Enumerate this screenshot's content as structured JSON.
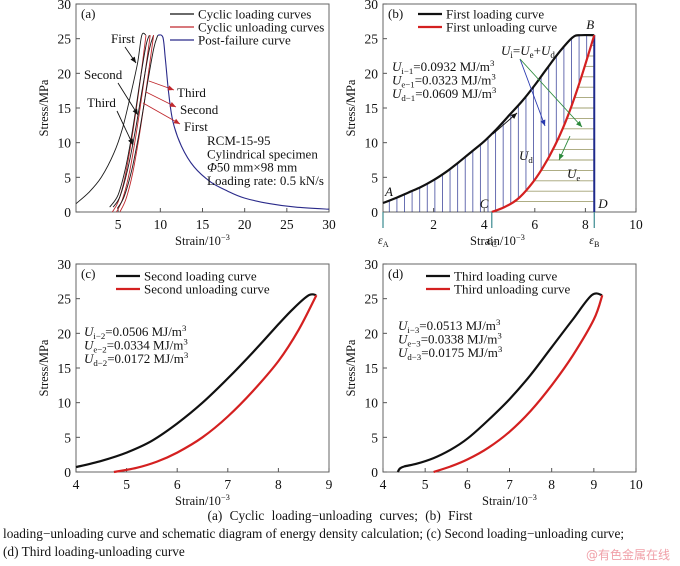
{
  "chart_data": [
    {
      "panel": "(a)",
      "type": "line",
      "xlabel": "Strain/10⁻³",
      "ylabel": "Stress/MPa",
      "xlim": [
        0,
        30
      ],
      "ylim": [
        0,
        30
      ],
      "xticks": [
        5,
        10,
        15,
        20,
        25,
        30
      ],
      "yticks": [
        0,
        5,
        10,
        15,
        20,
        25,
        30
      ],
      "grid": false,
      "legend_position": "top-right",
      "legend": [
        {
          "label": "Cyclic loading curves",
          "color": "#111111"
        },
        {
          "label": "Cyclic unloading curves",
          "color": "#c0282d"
        },
        {
          "label": "Post-failure curve",
          "color": "#2a2a8a"
        }
      ],
      "series": [
        {
          "name": "First loading",
          "kind": "loading",
          "x": [
            0,
            1.5,
            3,
            4.5,
            5.5,
            6.5,
            7.3,
            7.8,
            8.3
          ],
          "y": [
            1.2,
            2.8,
            5,
            8.5,
            12,
            17,
            21.5,
            25.5,
            25.5
          ]
        },
        {
          "name": "First unloading",
          "kind": "unloading",
          "x": [
            4.3,
            5,
            5.8,
            6.6,
            7.4,
            8.3
          ],
          "y": [
            0,
            1.5,
            5,
            10.5,
            17,
            25.5
          ]
        },
        {
          "name": "Second loading",
          "kind": "loading",
          "x": [
            4.0,
            5.0,
            5.9,
            6.8,
            7.6,
            8.3,
            8.7
          ],
          "y": [
            0.7,
            2.5,
            6.5,
            12.5,
            19,
            24,
            25.5
          ]
        },
        {
          "name": "Second unloading",
          "kind": "unloading",
          "x": [
            4.8,
            5.5,
            6.3,
            7.1,
            7.9,
            8.8
          ],
          "y": [
            0,
            1.8,
            5.5,
            11,
            17.5,
            25.5
          ]
        },
        {
          "name": "Third loading",
          "kind": "loading",
          "x": [
            4.4,
            5.2,
            6.1,
            7.0,
            7.9,
            8.7,
            9.2
          ],
          "y": [
            0.7,
            2.2,
            6,
            11.5,
            18,
            23.5,
            25.5
          ]
        },
        {
          "name": "Third unloading",
          "kind": "unloading",
          "x": [
            5.2,
            5.9,
            6.7,
            7.5,
            8.3,
            9.2
          ],
          "y": [
            0,
            1.8,
            5.5,
            11,
            17.5,
            25.5
          ]
        },
        {
          "name": "Final loading",
          "kind": "loading",
          "x": [
            4.9,
            5.7,
            6.6,
            7.5,
            8.4,
            9.2,
            9.7
          ],
          "y": [
            0.5,
            2.2,
            6,
            11.5,
            18,
            23.5,
            25.5
          ]
        },
        {
          "name": "Post-failure",
          "kind": "post",
          "x": [
            9.7,
            10.3,
            10.6,
            11,
            11.5,
            12.5,
            14,
            16,
            18,
            20,
            23,
            26,
            30
          ],
          "y": [
            25.5,
            25.2,
            22,
            17,
            13,
            9.5,
            6.5,
            4.3,
            3,
            2,
            1.2,
            0.7,
            0.4
          ]
        }
      ],
      "annotations": {
        "loading_labels": [
          "First",
          "Second",
          "Third"
        ],
        "unloading_labels": [
          "Third",
          "Second",
          "First"
        ],
        "specimen_info": [
          "RCM-15-95",
          "Cylindrical specimen",
          "Φ50 mm×98 mm",
          "Loading rate: 0.5 kN/s"
        ]
      }
    },
    {
      "panel": "(b)",
      "type": "line",
      "xlabel": "Strain/10⁻³",
      "ylabel": "Stress/MPa",
      "xlim": [
        0,
        10
      ],
      "ylim": [
        0,
        30
      ],
      "xticks": [
        2,
        4,
        6,
        8,
        10
      ],
      "yticks": [
        0,
        5,
        10,
        15,
        20,
        25,
        30
      ],
      "grid": false,
      "legend_position": "top-left",
      "legend": [
        {
          "label": "First loading curve",
          "color": "#111111"
        },
        {
          "label": "First unloading curve",
          "color": "#d42020"
        }
      ],
      "series": [
        {
          "name": "First loading curve",
          "x": [
            0,
            0.5,
            1,
            1.5,
            2,
            2.5,
            3,
            3.5,
            4,
            4.5,
            5,
            5.5,
            6,
            6.5,
            7,
            7.5,
            7.8,
            8.35
          ],
          "y": [
            1.3,
            2,
            2.8,
            3.6,
            4.6,
            5.8,
            7.2,
            8.7,
            10.2,
            12,
            14,
            16,
            18.3,
            20.8,
            23.2,
            25.2,
            25.5,
            25.5
          ]
        },
        {
          "name": "First unloading curve",
          "x": [
            4.3,
            4.8,
            5.3,
            5.8,
            6.3,
            6.8,
            7.3,
            7.8,
            8.35
          ],
          "y": [
            0,
            0.7,
            1.8,
            3.7,
            6.3,
            9.6,
            13.8,
            19,
            25.5
          ]
        }
      ],
      "points": [
        {
          "label": "A",
          "x": 0,
          "y": 1.3
        },
        {
          "label": "B",
          "x": 8.35,
          "y": 25.5
        },
        {
          "label": "C",
          "x": 4.3,
          "y": 0
        },
        {
          "label": "D",
          "x": 8.35,
          "y": 0
        }
      ],
      "strain_markers": [
        {
          "label": "ε",
          "sub": "A",
          "x": 0
        },
        {
          "label": "ε",
          "sub": "C",
          "x": 4.3
        },
        {
          "label": "ε",
          "sub": "B",
          "x": 8.35
        }
      ],
      "region_labels": {
        "dissipated": "U",
        "dissipated_sub": "d",
        "elastic": "U",
        "elastic_sub": "e"
      },
      "energy_relation": {
        "lhs": "U",
        "lhs_sub": "i",
        "r1": "U",
        "r1_sub": "e",
        "r2": "U",
        "r2_sub": "d"
      },
      "energy_values": [
        {
          "symbol": "U",
          "sub": "i−1",
          "value": "0.0932 MJ/m",
          "sup": "3"
        },
        {
          "symbol": "U",
          "sub": "e−1",
          "value": "0.0323 MJ/m",
          "sup": "3"
        },
        {
          "symbol": "U",
          "sub": "d−1",
          "value": "0.0609 MJ/m",
          "sup": "3"
        }
      ],
      "colors": {
        "hatch_dissipated": "#1f2a8c",
        "hatch_elastic": "#8c8a50",
        "arrow_blue": "#2a3ab0",
        "arrow_green": "#2c8a3c",
        "marker": "#3a8a90"
      }
    },
    {
      "panel": "(c)",
      "type": "line",
      "xlabel": "Strain/10⁻³",
      "ylabel": "Stress/MPa",
      "xlim": [
        4,
        9
      ],
      "ylim": [
        0,
        30
      ],
      "xticks": [
        4,
        5,
        6,
        7,
        8,
        9
      ],
      "yticks": [
        0,
        5,
        10,
        15,
        20,
        25,
        30
      ],
      "grid": false,
      "legend_position": "top",
      "legend": [
        {
          "label": "Second loading curve",
          "color": "#111111"
        },
        {
          "label": "Second unloading curve",
          "color": "#d42020"
        }
      ],
      "series": [
        {
          "name": "Second loading curve",
          "x": [
            4,
            4.5,
            5,
            5.5,
            6,
            6.5,
            7,
            7.5,
            8,
            8.3,
            8.6,
            8.75
          ],
          "y": [
            0.7,
            1.6,
            2.8,
            4.5,
            7,
            10,
            13.5,
            17.3,
            21.3,
            23.6,
            25.5,
            25.5
          ]
        },
        {
          "name": "Second unloading curve",
          "x": [
            4.75,
            5.2,
            5.6,
            6,
            6.5,
            7,
            7.5,
            8,
            8.4,
            8.75
          ],
          "y": [
            0,
            0.6,
            1.5,
            2.8,
            5,
            8,
            11.7,
            16,
            20.5,
            25.5
          ]
        }
      ],
      "energy_values": [
        {
          "symbol": "U",
          "sub": "i−2",
          "value": "0.0506 MJ/m",
          "sup": "3"
        },
        {
          "symbol": "U",
          "sub": "e−2",
          "value": "0.0334 MJ/m",
          "sup": "3"
        },
        {
          "symbol": "U",
          "sub": "d−2",
          "value": "0.0172 MJ/m",
          "sup": "3"
        }
      ]
    },
    {
      "panel": "(d)",
      "type": "line",
      "xlabel": "Strain/10⁻³",
      "ylabel": "Stress/MPa",
      "xlim": [
        4,
        10
      ],
      "ylim": [
        0,
        30
      ],
      "xticks": [
        4,
        5,
        6,
        7,
        8,
        9,
        10
      ],
      "yticks": [
        0,
        5,
        10,
        15,
        20,
        25,
        30
      ],
      "grid": false,
      "legend_position": "top",
      "legend": [
        {
          "label": "Third loading curve",
          "color": "#111111"
        },
        {
          "label": "Third unloading curve",
          "color": "#d42020"
        }
      ],
      "series": [
        {
          "name": "Third loading curve",
          "x": [
            4.35,
            4.4,
            4.5,
            4.8,
            5.2,
            5.6,
            6,
            6.5,
            7,
            7.5,
            8,
            8.5,
            8.95,
            9.2
          ],
          "y": [
            0,
            0.5,
            0.8,
            1.2,
            2,
            3.2,
            4.8,
            7.5,
            10.5,
            14,
            18,
            22,
            25.5,
            25.5
          ]
        },
        {
          "name": "Third unloading curve",
          "x": [
            5.2,
            5.6,
            6,
            6.5,
            7,
            7.5,
            8,
            8.5,
            9,
            9.2
          ],
          "y": [
            0,
            0.8,
            1.8,
            3.5,
            5.8,
            8.8,
            12.5,
            16.8,
            22,
            25.5
          ]
        }
      ],
      "energy_values": [
        {
          "symbol": "U",
          "sub": "i−3",
          "value": "0.0513 MJ/m",
          "sup": "3"
        },
        {
          "symbol": "U",
          "sub": "e−3",
          "value": "0.0338 MJ/m",
          "sup": "3"
        },
        {
          "symbol": "U",
          "sub": "d−3",
          "value": "0.0175 MJ/m",
          "sup": "3"
        }
      ]
    }
  ],
  "caption": {
    "line1": "(a)  Cyclic  loading−unloading  curves;  (b)  First",
    "line2": "loading−unloading curve and schematic diagram of energy density calculation; (c) Second loading−unloading curve;",
    "line3": "(d) Third loading-unloading curve"
  },
  "watermark": "@有色金属在线"
}
